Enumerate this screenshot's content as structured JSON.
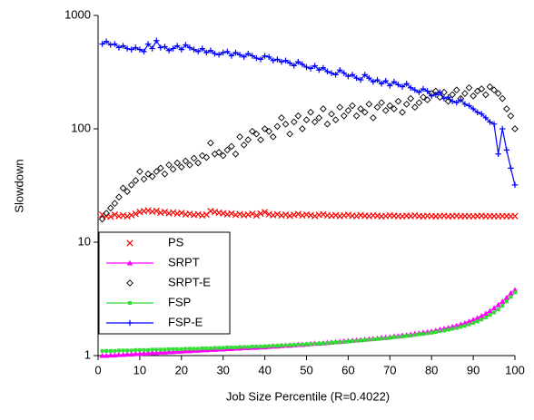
{
  "chart_data": {
    "type": "line",
    "x_label": "Job Size Percentile (R=0.4022)",
    "y_label": "Slowdown",
    "log_y": true,
    "legend": "lower left",
    "xlim": [
      0,
      100
    ],
    "xticks": [
      0,
      10,
      20,
      30,
      40,
      50,
      60,
      70,
      80,
      90,
      100
    ],
    "ylim": [
      1,
      1000
    ],
    "yticks": [
      1,
      10,
      100,
      1000
    ],
    "x": [
      1,
      2,
      3,
      4,
      5,
      6,
      7,
      8,
      9,
      10,
      11,
      12,
      13,
      14,
      15,
      16,
      17,
      18,
      19,
      20,
      21,
      22,
      23,
      24,
      25,
      26,
      27,
      28,
      29,
      30,
      31,
      32,
      33,
      34,
      35,
      36,
      37,
      38,
      39,
      40,
      41,
      42,
      43,
      44,
      45,
      46,
      47,
      48,
      49,
      50,
      51,
      52,
      53,
      54,
      55,
      56,
      57,
      58,
      59,
      60,
      61,
      62,
      63,
      64,
      65,
      66,
      67,
      68,
      69,
      70,
      71,
      72,
      73,
      74,
      75,
      76,
      77,
      78,
      79,
      80,
      81,
      82,
      83,
      84,
      85,
      86,
      87,
      88,
      89,
      90,
      91,
      92,
      93,
      94,
      95,
      96,
      97,
      98,
      99,
      100
    ],
    "series": [
      {
        "name": "PS",
        "color": "#ff0000",
        "marker": "x",
        "line": false,
        "values": [
          17.5,
          17,
          16.8,
          17.5,
          17,
          17.2,
          16.9,
          17.3,
          17.8,
          18.5,
          18.8,
          19,
          18.6,
          18.9,
          18.2,
          18.5,
          18,
          18.3,
          17.9,
          18.1,
          17.6,
          17.8,
          17.4,
          17.6,
          17.2,
          17.5,
          18.8,
          18.5,
          18.2,
          18,
          17.6,
          17.9,
          17.4,
          17.7,
          17.3,
          17.5,
          17.8,
          17.2,
          17.9,
          18.4,
          17.6,
          17.3,
          17.6,
          17.2,
          17.5,
          17.1,
          17.4,
          17.7,
          17.2,
          17.5,
          17.3,
          17,
          17.4,
          17.6,
          17.2,
          17.1,
          17.3,
          17,
          17.2,
          17.4,
          17.1,
          17,
          17.3,
          17.1,
          17,
          17.2,
          17.1,
          16.9,
          17,
          17.2,
          17.1,
          17,
          16.9,
          17.1,
          17,
          17.2,
          17,
          16.9,
          17.1,
          17,
          16.9,
          17,
          17.1,
          16.9,
          17,
          17.1,
          16.9,
          17,
          17,
          16.9,
          17,
          17.1,
          16.9,
          17,
          17,
          16.9,
          17,
          17,
          16.9,
          17
        ]
      },
      {
        "name": "SRPT",
        "color": "#ff00ff",
        "marker": "triangle",
        "line": true,
        "values": [
          1.0,
          1.0,
          1.01,
          1.01,
          1.02,
          1.02,
          1.03,
          1.03,
          1.04,
          1.04,
          1.05,
          1.05,
          1.06,
          1.06,
          1.07,
          1.07,
          1.08,
          1.08,
          1.09,
          1.09,
          1.1,
          1.1,
          1.11,
          1.11,
          1.12,
          1.12,
          1.13,
          1.13,
          1.14,
          1.14,
          1.15,
          1.15,
          1.16,
          1.16,
          1.17,
          1.17,
          1.18,
          1.18,
          1.19,
          1.19,
          1.2,
          1.21,
          1.21,
          1.22,
          1.23,
          1.23,
          1.24,
          1.25,
          1.25,
          1.26,
          1.27,
          1.28,
          1.28,
          1.29,
          1.3,
          1.31,
          1.32,
          1.33,
          1.34,
          1.35,
          1.36,
          1.37,
          1.38,
          1.39,
          1.4,
          1.41,
          1.42,
          1.44,
          1.45,
          1.46,
          1.48,
          1.49,
          1.51,
          1.52,
          1.54,
          1.56,
          1.58,
          1.6,
          1.62,
          1.64,
          1.67,
          1.7,
          1.73,
          1.76,
          1.8,
          1.84,
          1.89,
          1.94,
          2.0,
          2.07,
          2.15,
          2.24,
          2.35,
          2.48,
          2.63,
          2.8,
          3.0,
          3.25,
          3.55,
          3.8
        ]
      },
      {
        "name": "SRPT-E",
        "color": "#000000",
        "marker": "diamond",
        "line": false,
        "values": [
          16,
          18,
          20,
          22,
          25,
          30,
          28,
          32,
          35,
          42,
          36,
          40,
          38,
          42,
          45,
          40,
          48,
          44,
          50,
          46,
          52,
          48,
          55,
          50,
          58,
          56,
          75,
          60,
          62,
          58,
          65,
          70,
          60,
          85,
          72,
          80,
          95,
          90,
          80,
          100,
          95,
          85,
          105,
          125,
          110,
          90,
          115,
          130,
          100,
          120,
          140,
          115,
          125,
          150,
          110,
          135,
          120,
          155,
          130,
          145,
          160,
          130,
          150,
          140,
          165,
          125,
          155,
          170,
          145,
          160,
          150,
          175,
          140,
          165,
          185,
          155,
          170,
          190,
          180,
          205,
          215,
          190,
          210,
          175,
          200,
          220,
          185,
          205,
          230,
          195,
          215,
          225,
          200,
          235,
          220,
          205,
          185,
          150,
          130,
          100
        ]
      },
      {
        "name": "FSP",
        "color": "#33dd33",
        "marker": "square",
        "line": true,
        "values": [
          1.1,
          1.1,
          1.1,
          1.1,
          1.11,
          1.11,
          1.11,
          1.11,
          1.12,
          1.12,
          1.12,
          1.12,
          1.13,
          1.13,
          1.13,
          1.13,
          1.14,
          1.14,
          1.14,
          1.14,
          1.15,
          1.15,
          1.15,
          1.15,
          1.16,
          1.16,
          1.16,
          1.17,
          1.17,
          1.17,
          1.18,
          1.18,
          1.18,
          1.19,
          1.19,
          1.19,
          1.2,
          1.2,
          1.2,
          1.21,
          1.21,
          1.22,
          1.22,
          1.23,
          1.23,
          1.24,
          1.24,
          1.25,
          1.25,
          1.26,
          1.26,
          1.27,
          1.28,
          1.28,
          1.29,
          1.3,
          1.31,
          1.31,
          1.32,
          1.33,
          1.34,
          1.35,
          1.36,
          1.37,
          1.38,
          1.39,
          1.4,
          1.41,
          1.42,
          1.43,
          1.45,
          1.46,
          1.47,
          1.49,
          1.5,
          1.52,
          1.54,
          1.55,
          1.57,
          1.59,
          1.61,
          1.64,
          1.66,
          1.69,
          1.72,
          1.75,
          1.79,
          1.83,
          1.88,
          1.94,
          2.0,
          2.08,
          2.17,
          2.28,
          2.4,
          2.55,
          2.75,
          3.0,
          3.3,
          3.6
        ]
      },
      {
        "name": "FSP-E",
        "color": "#0000ff",
        "marker": "plus",
        "line": true,
        "values": [
          560,
          590,
          550,
          560,
          520,
          540,
          510,
          500,
          520,
          500,
          480,
          560,
          510,
          600,
          520,
          530,
          490,
          510,
          540,
          500,
          550,
          520,
          500,
          480,
          510,
          470,
          490,
          460,
          450,
          470,
          480,
          440,
          470,
          450,
          430,
          460,
          440,
          420,
          410,
          440,
          430,
          400,
          410,
          390,
          400,
          380,
          360,
          390,
          370,
          350,
          340,
          360,
          330,
          345,
          320,
          310,
          300,
          330,
          310,
          290,
          300,
          280,
          270,
          300,
          280,
          260,
          270,
          250,
          265,
          240,
          260,
          245,
          235,
          250,
          230,
          220,
          210,
          225,
          215,
          195,
          200,
          210,
          185,
          190,
          175,
          170,
          180,
          165,
          160,
          150,
          140,
          135,
          125,
          115,
          110,
          60,
          100,
          65,
          45,
          32
        ]
      }
    ]
  }
}
